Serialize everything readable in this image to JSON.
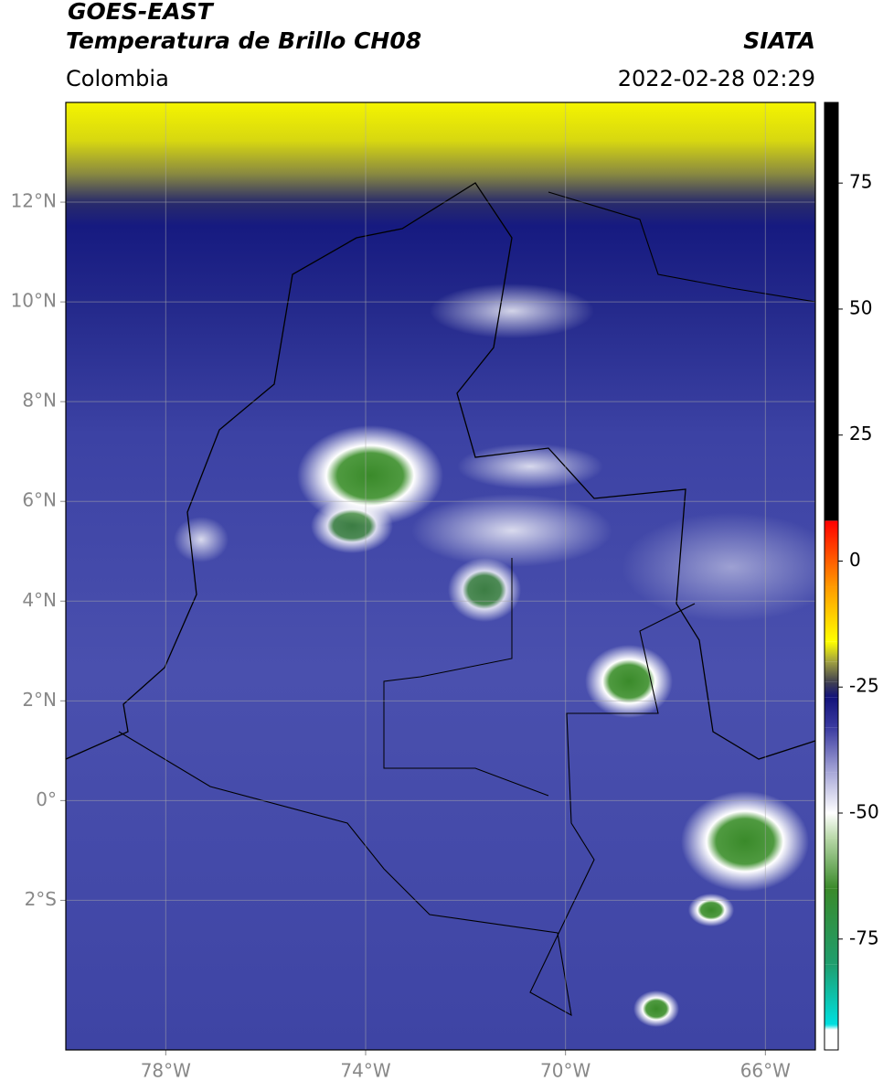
{
  "header": {
    "title": "GOES-EAST",
    "subtitle": "Temperatura de Brillo CH08",
    "source": "SIATA",
    "region": "Colombia",
    "datetime": "2022-02-28 02:29"
  },
  "map": {
    "xlim": [
      -80,
      -65
    ],
    "ylim": [
      -5,
      14
    ],
    "xticks": [
      {
        "value": -78,
        "label": "78°W"
      },
      {
        "value": -74,
        "label": "74°W"
      },
      {
        "value": -70,
        "label": "70°W"
      },
      {
        "value": -66,
        "label": "66°W"
      }
    ],
    "yticks": [
      {
        "value": 12,
        "label": "12°N"
      },
      {
        "value": 10,
        "label": "10°N"
      },
      {
        "value": 8,
        "label": "8°N"
      },
      {
        "value": 6,
        "label": "6°N"
      },
      {
        "value": 4,
        "label": "4°N"
      },
      {
        "value": 2,
        "label": "2°N"
      },
      {
        "value": 0,
        "label": "0°"
      },
      {
        "value": -2,
        "label": "2°S"
      }
    ],
    "grid": true
  },
  "colorbar": {
    "lim": [
      -97,
      91
    ],
    "ticks": [
      75,
      50,
      25,
      0,
      -25,
      -50,
      -75
    ],
    "stops": [
      {
        "value": -97,
        "color": "#ffffff"
      },
      {
        "value": -93,
        "color": "#ffffff"
      },
      {
        "value": -92,
        "color": "#00e0e0"
      },
      {
        "value": -80,
        "color": "#1f9e6e"
      },
      {
        "value": -65,
        "color": "#3a8a2a"
      },
      {
        "value": -55,
        "color": "#b8d8a8"
      },
      {
        "value": -50,
        "color": "#ffffff"
      },
      {
        "value": -42,
        "color": "#a8a8d8"
      },
      {
        "value": -33,
        "color": "#3a3aa0"
      },
      {
        "value": -27,
        "color": "#12127a"
      },
      {
        "value": -24,
        "color": "#404050"
      },
      {
        "value": -20,
        "color": "#a0a040"
      },
      {
        "value": -16,
        "color": "#ffff00"
      },
      {
        "value": -5,
        "color": "#ff9900"
      },
      {
        "value": 8,
        "color": "#ff0000"
      },
      {
        "value": 8.01,
        "color": "#000000"
      },
      {
        "value": 91,
        "color": "#000000"
      }
    ]
  }
}
